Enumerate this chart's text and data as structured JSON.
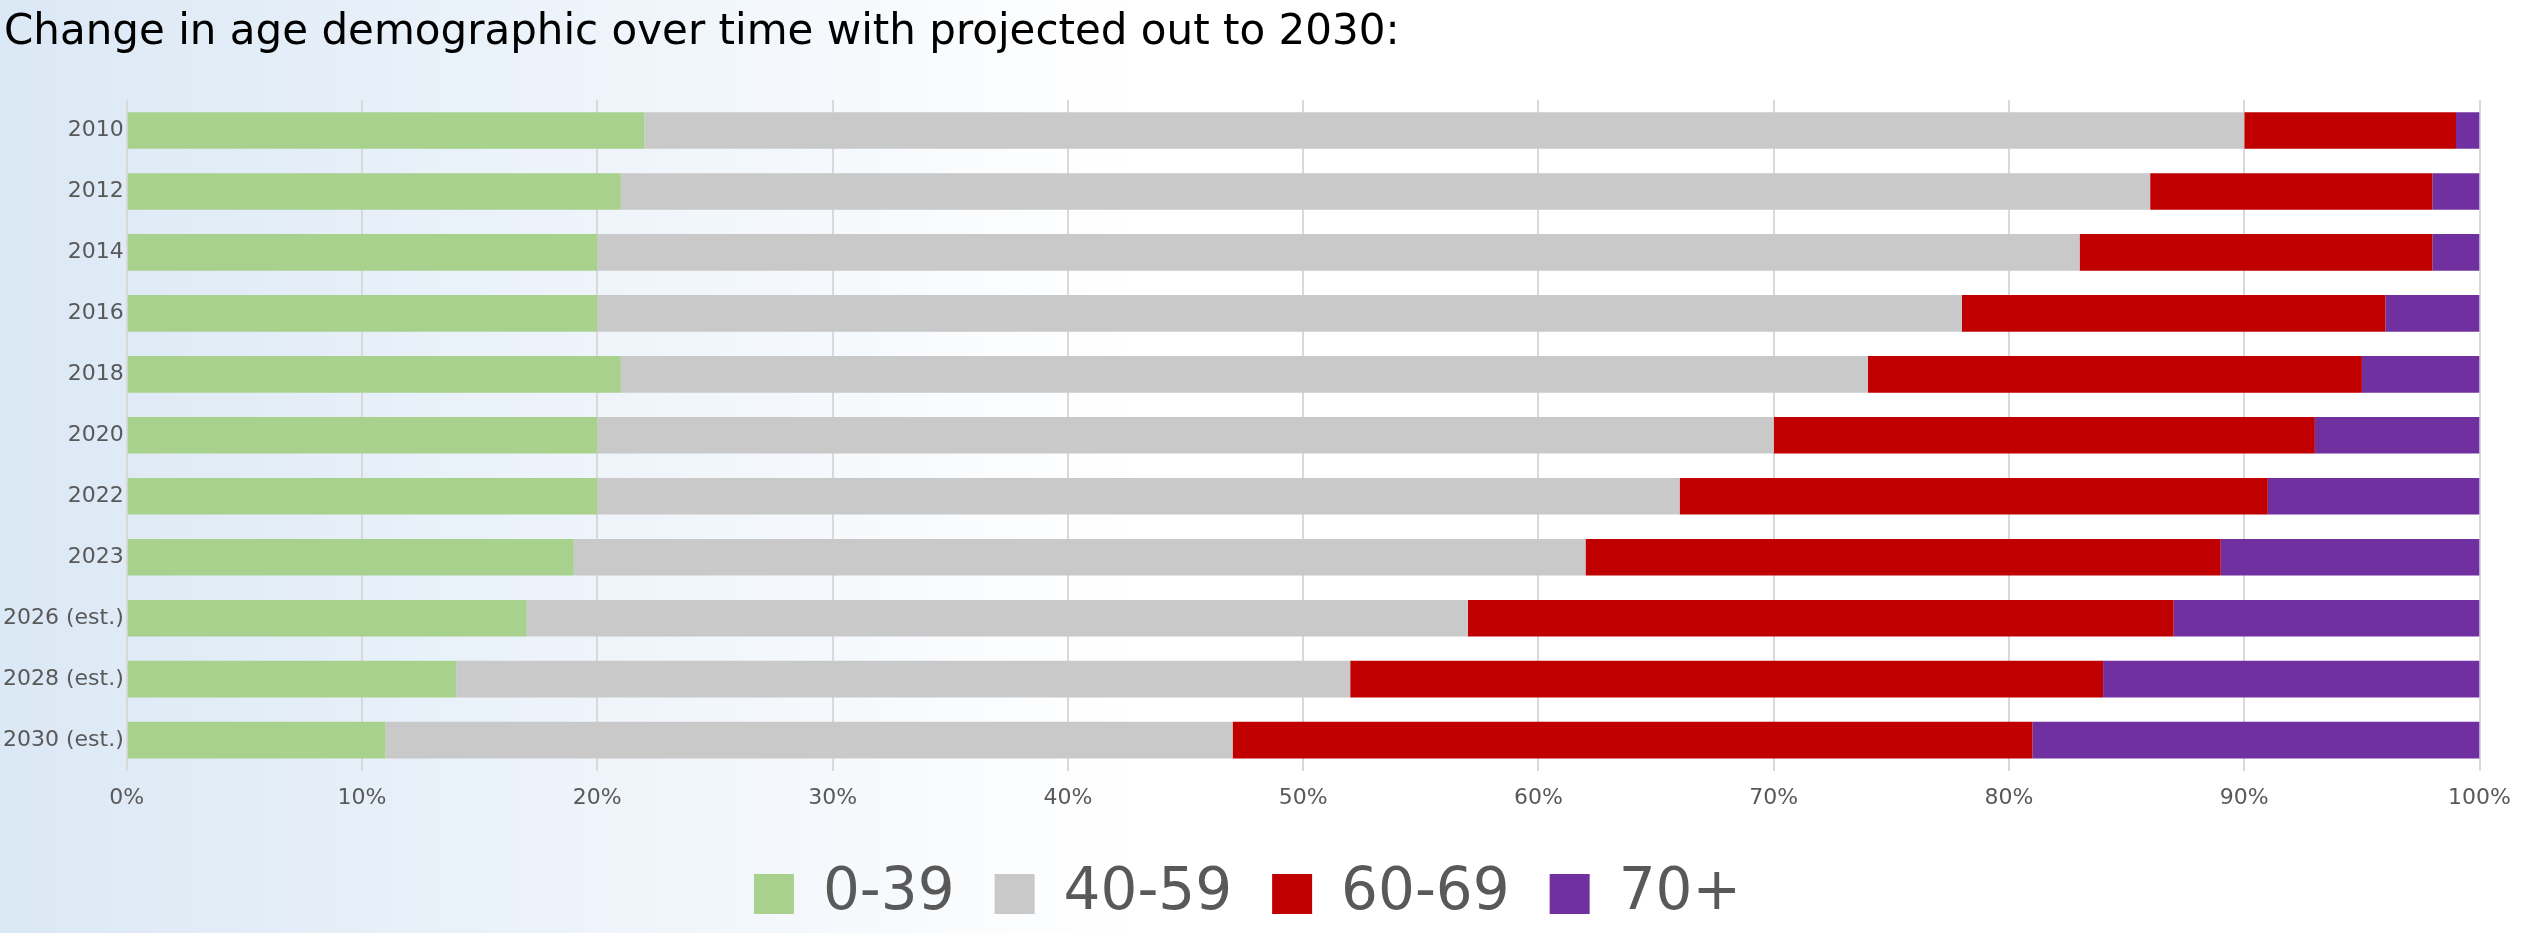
{
  "chart_data": {
    "type": "bar",
    "orientation": "horizontal",
    "stacked": true,
    "title": "Change in age demographic over time with projected out to 2030:",
    "categories": [
      "2010",
      "2012",
      "2014",
      "2016",
      "2018",
      "2020",
      "2022",
      "2023",
      "2026 (est.)",
      "2028 (est.)",
      "2030 (est.)"
    ],
    "series": [
      {
        "name": "0-39",
        "color": "#a9d18e",
        "values": [
          22,
          21,
          20,
          20,
          21,
          20,
          20,
          19,
          17,
          14,
          11
        ]
      },
      {
        "name": "40-59",
        "color": "#c9c9c9",
        "values": [
          68,
          65,
          63,
          58,
          53,
          50,
          46,
          43,
          40,
          38,
          36
        ]
      },
      {
        "name": "60-69",
        "color": "#c00000",
        "values": [
          9,
          12,
          15,
          18,
          21,
          23,
          25,
          27,
          30,
          32,
          34
        ]
      },
      {
        "name": "70+",
        "color": "#7030a0",
        "values": [
          1,
          2,
          2,
          4,
          5,
          7,
          9,
          11,
          13,
          16,
          19
        ]
      }
    ],
    "xlim": [
      0,
      100
    ],
    "xticks": [
      {
        "value": 0,
        "label": "0%"
      },
      {
        "value": 10,
        "label": "10%"
      },
      {
        "value": 20,
        "label": "20%"
      },
      {
        "value": 30,
        "label": "30%"
      },
      {
        "value": 40,
        "label": "40%"
      },
      {
        "value": 50,
        "label": "50%"
      },
      {
        "value": 60,
        "label": "60%"
      },
      {
        "value": 70,
        "label": "70%"
      },
      {
        "value": 80,
        "label": "80%"
      },
      {
        "value": 90,
        "label": "90%"
      },
      {
        "value": 100,
        "label": "100%"
      }
    ],
    "grid": "x",
    "legend": "bottom"
  }
}
